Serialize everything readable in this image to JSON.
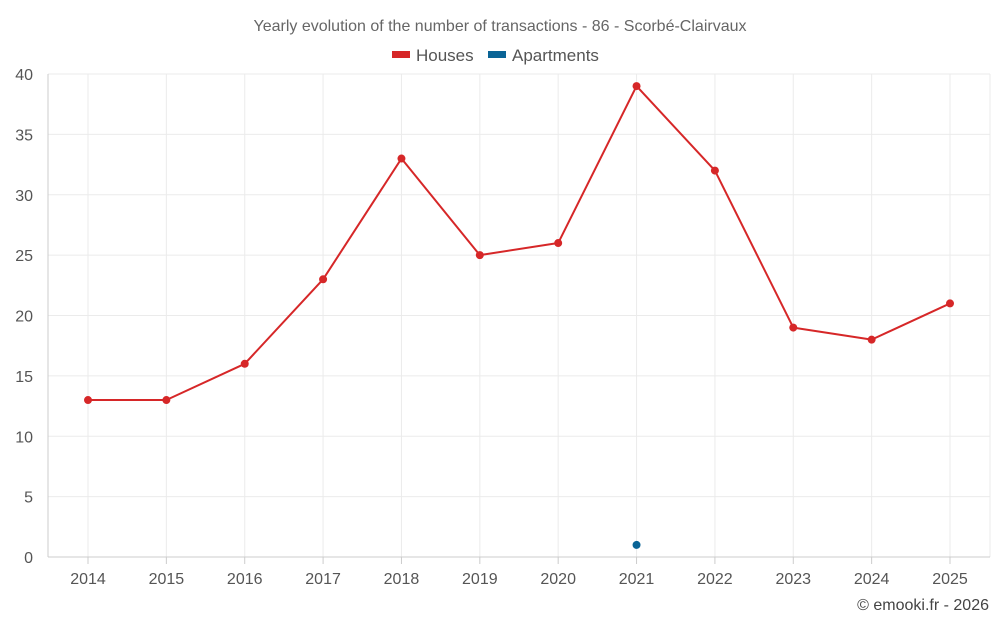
{
  "chart_data": {
    "type": "line",
    "title": "Yearly evolution of the number of transactions - 86 - Scorbé-Clairvaux",
    "categories": [
      "2014",
      "2015",
      "2016",
      "2017",
      "2018",
      "2019",
      "2020",
      "2021",
      "2022",
      "2023",
      "2024",
      "2025"
    ],
    "series": [
      {
        "name": "Houses",
        "color": "#d62728",
        "values": [
          13,
          13,
          16,
          23,
          33,
          25,
          26,
          39,
          32,
          19,
          18,
          21
        ]
      },
      {
        "name": "Apartments",
        "color": "#0a6496",
        "values": [
          null,
          null,
          null,
          null,
          null,
          null,
          null,
          1,
          null,
          null,
          null,
          null
        ]
      }
    ],
    "ylim": [
      0,
      40
    ],
    "yticks": [
      0,
      5,
      10,
      15,
      20,
      25,
      30,
      35,
      40
    ],
    "xlabel": "",
    "ylabel": "",
    "grid": true,
    "legend_position": "top-center"
  },
  "credit": "© emooki.fr - 2026"
}
